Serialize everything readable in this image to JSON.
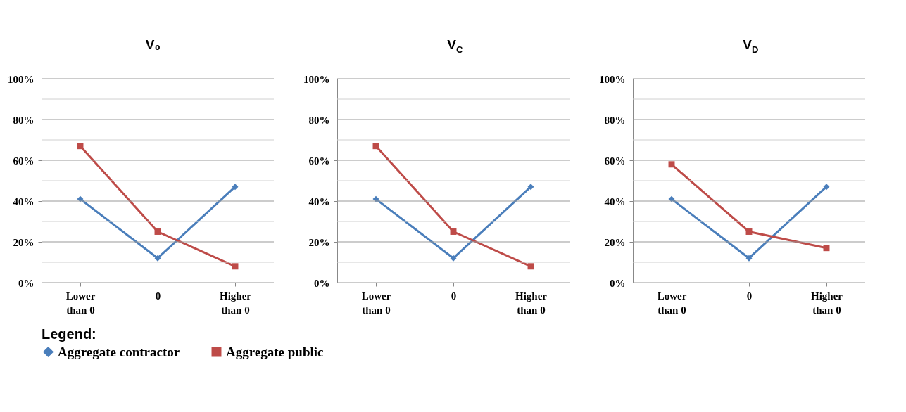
{
  "chart_data": [
    {
      "type": "line",
      "title": "V₀",
      "categories": [
        "Lower than 0",
        "0",
        "Higher than 0"
      ],
      "ylim": [
        0,
        100
      ],
      "yticks": [
        {
          "value": 0,
          "label": "0%"
        },
        {
          "value": 10,
          "label": null
        },
        {
          "value": 20,
          "label": "20%"
        },
        {
          "value": 30,
          "label": null
        },
        {
          "value": 40,
          "label": "40%"
        },
        {
          "value": 50,
          "label": null
        },
        {
          "value": 60,
          "label": "60%"
        },
        {
          "value": 70,
          "label": null
        },
        {
          "value": 80,
          "label": "80%"
        },
        {
          "value": 90,
          "label": null
        },
        {
          "value": 100,
          "label": "100%"
        }
      ],
      "grid": "y",
      "legend": "bottom",
      "legend_title": "Legend:",
      "series": [
        {
          "name": "Aggregate contractor",
          "color": "#4a7ebb",
          "marker": "diamond",
          "values": [
            41,
            12,
            47
          ]
        },
        {
          "name": "Aggregate public",
          "color": "#be4b48",
          "marker": "square",
          "values": [
            67,
            25,
            8
          ]
        }
      ]
    },
    {
      "type": "line",
      "title": "V$_{C}$",
      "categories": [
        "Lower than 0",
        "0",
        "Higher than 0"
      ],
      "ylim": [
        0,
        100
      ],
      "yticks": [
        {
          "value": 0,
          "label": "0%"
        },
        {
          "value": 10,
          "label": null
        },
        {
          "value": 20,
          "label": "20%"
        },
        {
          "value": 30,
          "label": null
        },
        {
          "value": 40,
          "label": "40%"
        },
        {
          "value": 50,
          "label": null
        },
        {
          "value": 60,
          "label": "60%"
        },
        {
          "value": 70,
          "label": null
        },
        {
          "value": 80,
          "label": "80%"
        },
        {
          "value": 90,
          "label": null
        },
        {
          "value": 100,
          "label": "100%"
        }
      ],
      "grid": "y",
      "series": [
        {
          "name": "Aggregate contractor",
          "color": "#4a7ebb",
          "marker": "diamond",
          "values": [
            41,
            12,
            47
          ]
        },
        {
          "name": "Aggregate public",
          "color": "#be4b48",
          "marker": "square",
          "values": [
            67,
            25,
            8
          ]
        }
      ]
    },
    {
      "type": "line",
      "title": "V$_{D}$",
      "categories": [
        "Lower than 0",
        "0",
        "Higher than 0"
      ],
      "ylim": [
        0,
        100
      ],
      "yticks": [
        {
          "value": 0,
          "label": "0%"
        },
        {
          "value": 10,
          "label": null
        },
        {
          "value": 20,
          "label": "20%"
        },
        {
          "value": 30,
          "label": null
        },
        {
          "value": 40,
          "label": "40%"
        },
        {
          "value": 50,
          "label": null
        },
        {
          "value": 60,
          "label": "60%"
        },
        {
          "value": 70,
          "label": null
        },
        {
          "value": 80,
          "label": "80%"
        },
        {
          "value": 90,
          "label": null
        },
        {
          "value": 100,
          "label": "100%"
        }
      ],
      "grid": "y",
      "series": [
        {
          "name": "Aggregate contractor",
          "color": "#4a7ebb",
          "marker": "diamond",
          "values": [
            41,
            12,
            47
          ]
        },
        {
          "name": "Aggregate public",
          "color": "#be4b48",
          "marker": "square",
          "values": [
            58,
            25,
            17
          ]
        }
      ]
    }
  ]
}
